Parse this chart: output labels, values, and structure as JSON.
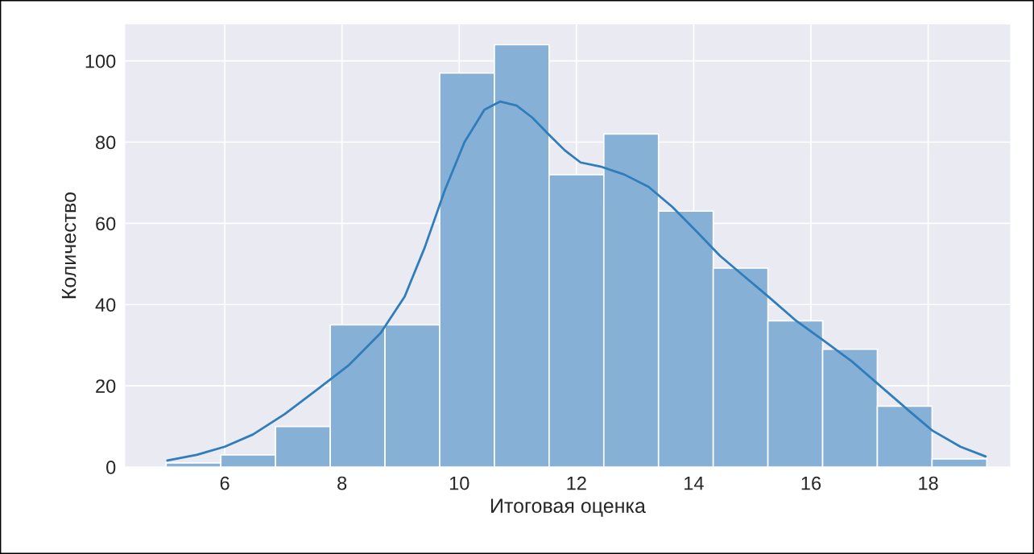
{
  "chart_data": {
    "type": "histogram",
    "xlabel": "Итоговая оценка",
    "ylabel": "Количество",
    "bins": [
      5,
      5.9333,
      6.8667,
      7.8,
      8.7333,
      9.6667,
      10.6,
      11.5333,
      12.4667,
      13.4,
      14.3333,
      15.2667,
      16.2,
      17.1333,
      18.0667,
      19
    ],
    "values": [
      1,
      3,
      10,
      35,
      35,
      97,
      104,
      72,
      82,
      63,
      49,
      36,
      29,
      15,
      2
    ],
    "color": "#86b0d5",
    "series": [
      {
        "type": "line",
        "color": "#2f7dbb",
        "x": [
          5.02,
          5.52,
          6,
          6.48,
          7.02,
          7.57,
          8.11,
          8.66,
          9.07,
          9.41,
          9.75,
          10.09,
          10.43,
          10.7,
          10.98,
          11.25,
          11.52,
          11.8,
          12.07,
          12.41,
          12.82,
          13.23,
          13.64,
          14.05,
          14.45,
          14.86,
          15.27,
          15.75,
          16.23,
          16.7,
          17.18,
          17.66,
          18.07,
          18.55,
          18.98
        ],
        "values": [
          1.6,
          3,
          5,
          8,
          13,
          19,
          25,
          33,
          42,
          54,
          68,
          80,
          88,
          90,
          89,
          86,
          82,
          78,
          75,
          74,
          72,
          69,
          64,
          58,
          52,
          47,
          42,
          36,
          31,
          26,
          20,
          14,
          9,
          5,
          2.6
        ]
      }
    ],
    "xlim": [
      4.3,
      19.4
    ],
    "ylim": [
      0,
      109
    ],
    "xticks": [
      6,
      8,
      10,
      12,
      14,
      16,
      18
    ],
    "yticks": [
      0,
      20,
      40,
      60,
      80,
      100
    ],
    "grid": true
  }
}
